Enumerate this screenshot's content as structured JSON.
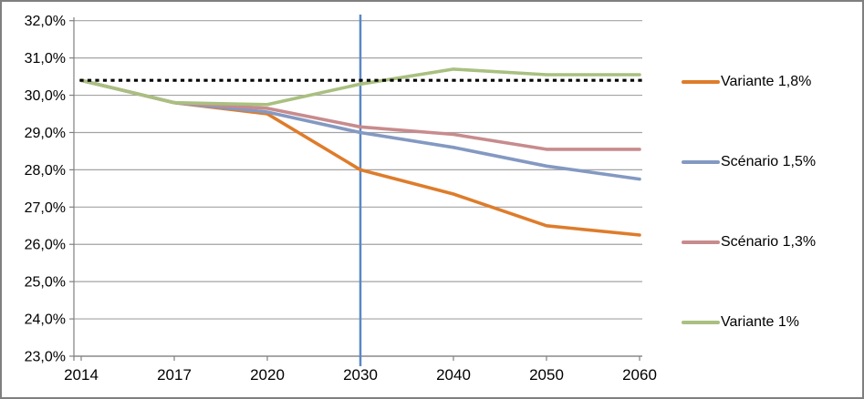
{
  "chart_data": {
    "type": "line",
    "title": "",
    "categories": [
      "2014",
      "2017",
      "2020",
      "2030",
      "2040",
      "2050",
      "2060"
    ],
    "series": [
      {
        "name": "Variante 1,8%",
        "color": "#DE7C2B",
        "values": [
          30.4,
          29.8,
          29.5,
          28.0,
          27.35,
          26.5,
          26.25
        ]
      },
      {
        "name": "Scénario 1,5%",
        "color": "#8399C2",
        "values": [
          30.4,
          29.8,
          29.55,
          29.0,
          28.6,
          28.1,
          27.75
        ]
      },
      {
        "name": "Scénario 1,3%",
        "color": "#C88B8D",
        "values": [
          30.4,
          29.8,
          29.65,
          29.15,
          28.95,
          28.55,
          28.55
        ]
      },
      {
        "name": "Variante 1%",
        "color": "#A9C080",
        "values": [
          30.4,
          29.8,
          29.75,
          30.3,
          30.7,
          30.55,
          30.55
        ]
      }
    ],
    "reference_line": {
      "value": 30.4,
      "color": "#000000",
      "style": "dotted"
    },
    "vertical_line": {
      "category": "2030",
      "color": "#5B87C5"
    },
    "y_axis": {
      "min": 23.0,
      "max": 32.0,
      "step": 1.0,
      "tick_labels": [
        "23,0%",
        "24,0%",
        "25,0%",
        "26,0%",
        "27,0%",
        "28,0%",
        "29,0%",
        "30,0%",
        "31,0%",
        "32,0%"
      ]
    },
    "x_axis": {
      "tick_labels": [
        "2014",
        "2017",
        "2020",
        "2030",
        "2040",
        "2050",
        "2060"
      ]
    },
    "legend": {
      "position": "right",
      "entries": [
        "Variante 1,8%",
        "Scénario 1,5%",
        "Scénario 1,3%",
        "Variante 1%"
      ]
    },
    "grid": true,
    "colors": {
      "gridline": "#A3A3A3",
      "axis": "#808080",
      "border": "#7F7F7F",
      "background": "#FFFFFF",
      "text": "#000000"
    }
  }
}
